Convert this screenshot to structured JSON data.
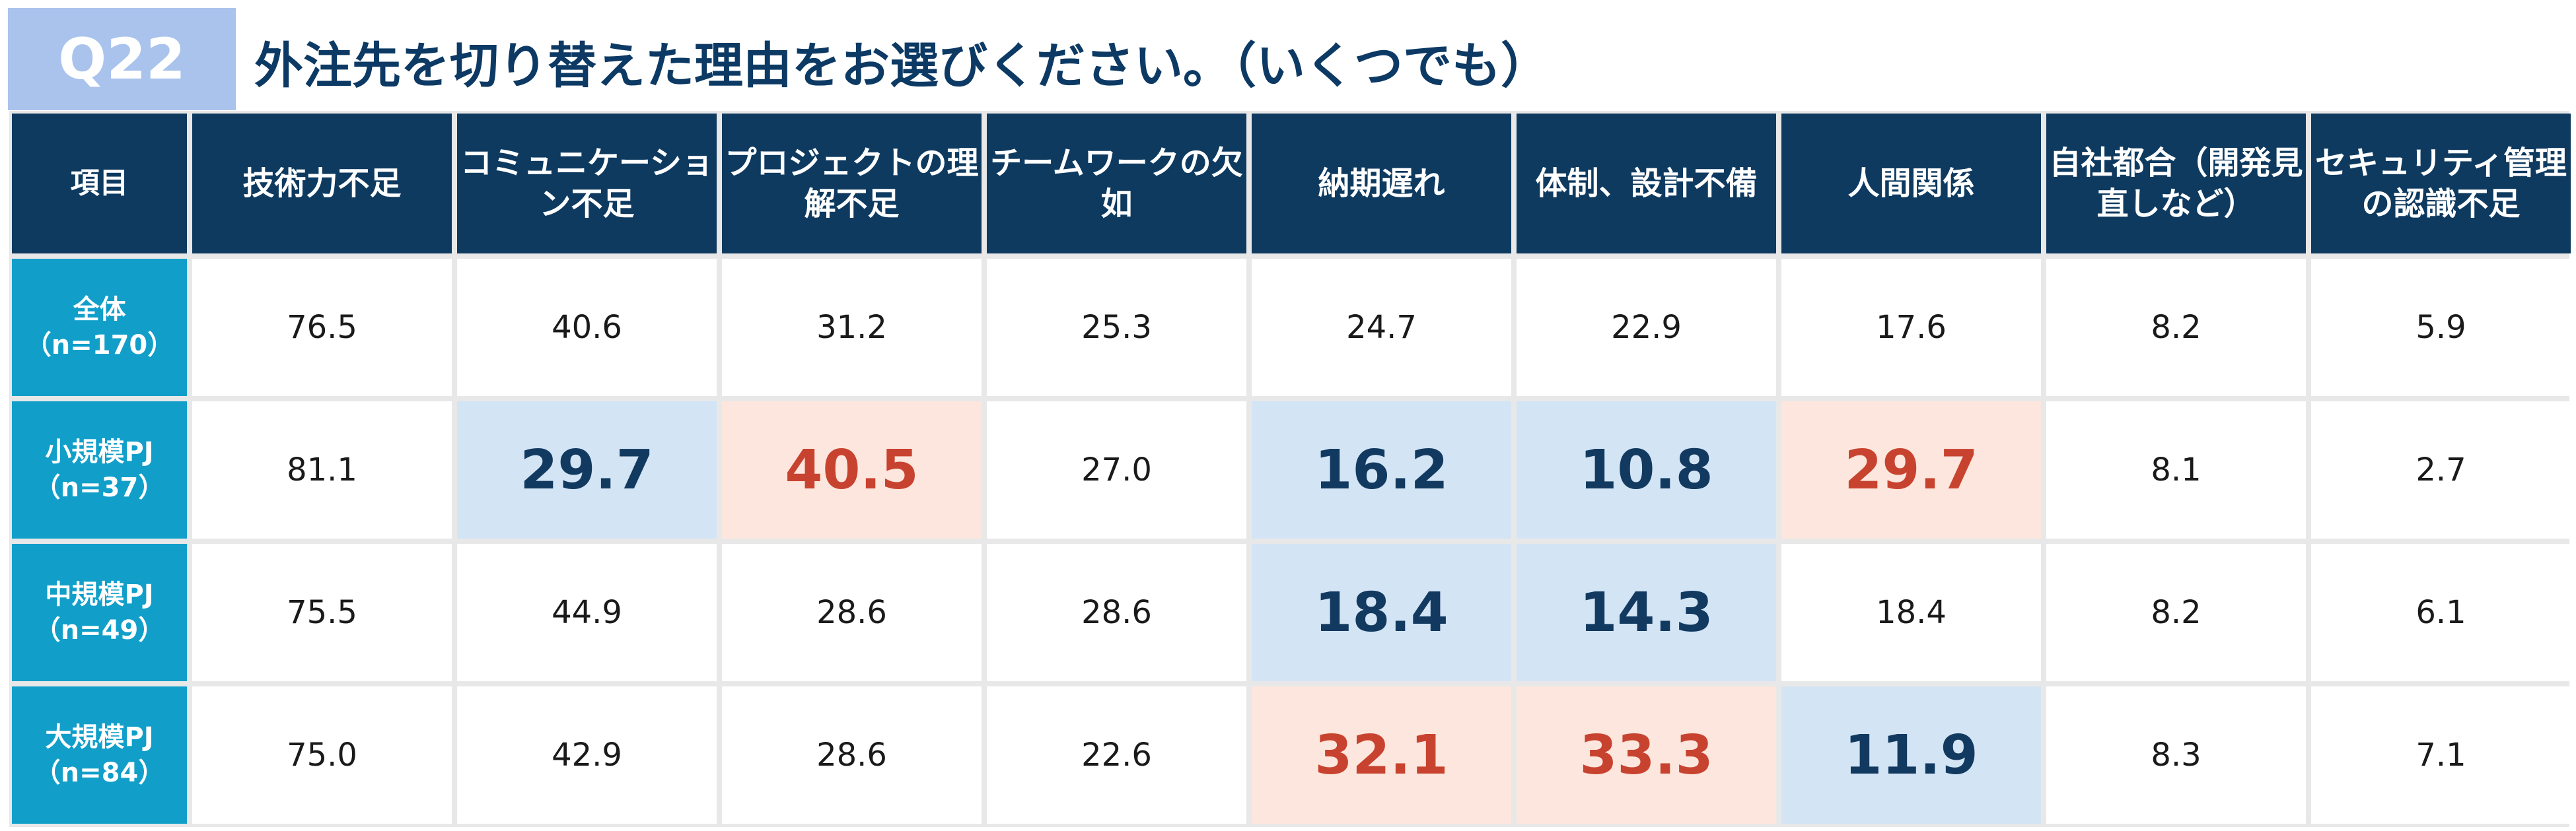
{
  "question_label": "Q22",
  "question_text": "外注先を切り替えた理由をお選びください。（いくつでも）",
  "chart_data": {
    "type": "table",
    "corner_label": "項目",
    "columns": [
      "技術力不足",
      "コミュニケーション不足",
      "プロジェクトの理解不足",
      "チームワークの欠如",
      "納期遅れ",
      "体制、設計不備",
      "人間関係",
      "自社都合（開発見直しなど）",
      "セキュリティ管理の認識不足"
    ],
    "rows": [
      {
        "label": "全体\n（n=170）",
        "values": [
          "76.5",
          "40.6",
          "31.2",
          "25.3",
          "24.7",
          "22.9",
          "17.6",
          "8.2",
          "5.9"
        ],
        "highlight": [
          "",
          "",
          "",
          "",
          "",
          "",
          "",
          "",
          ""
        ]
      },
      {
        "label": "小規模PJ\n（n=37）",
        "values": [
          "81.1",
          "29.7",
          "40.5",
          "27.0",
          "16.2",
          "10.8",
          "29.7",
          "8.1",
          "2.7"
        ],
        "highlight": [
          "",
          "low",
          "high",
          "",
          "low",
          "low",
          "high",
          "",
          ""
        ]
      },
      {
        "label": "中規模PJ\n（n=49）",
        "values": [
          "75.5",
          "44.9",
          "28.6",
          "28.6",
          "18.4",
          "14.3",
          "18.4",
          "8.2",
          "6.1"
        ],
        "highlight": [
          "",
          "",
          "",
          "",
          "low",
          "low",
          "",
          "",
          ""
        ]
      },
      {
        "label": "大規模PJ\n（n=84）",
        "values": [
          "75.0",
          "42.9",
          "28.6",
          "22.6",
          "32.1",
          "33.3",
          "11.9",
          "8.3",
          "7.1"
        ],
        "highlight": [
          "",
          "",
          "",
          "",
          "high",
          "high",
          "low",
          "",
          ""
        ]
      }
    ],
    "colors": {
      "header": "#0e3a60",
      "row_header": "#119fca",
      "low": "#d3e4f5",
      "low_text": "#123a60",
      "high": "#fde6dd",
      "high_text": "#c8432f"
    }
  }
}
